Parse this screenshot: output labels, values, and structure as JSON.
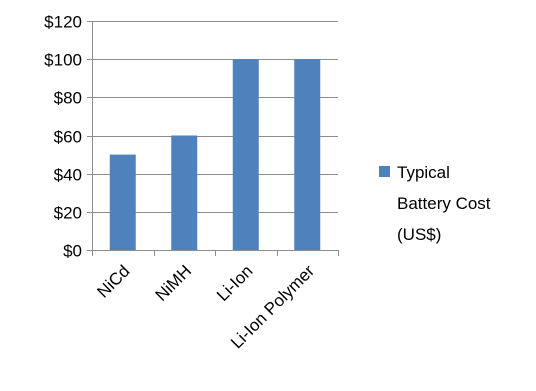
{
  "chart_data": {
    "type": "bar",
    "categories": [
      "NiCd",
      "NiMH",
      "Li-Ion",
      "Li-Ion Polymer"
    ],
    "series": [
      {
        "name": "Typical Battery Cost (US$)",
        "values": [
          50,
          60,
          100,
          100
        ],
        "color": "#4F81BD"
      }
    ],
    "ylim": [
      0,
      120
    ],
    "y_ticks": [
      0,
      20,
      40,
      60,
      80,
      100,
      120
    ],
    "y_tick_labels": [
      "$0",
      "$20",
      "$40",
      "$60",
      "$80",
      "$100",
      "$120"
    ],
    "gridlines": true,
    "legend": {
      "position": "right",
      "lines": [
        "Typical",
        "Battery Cost",
        "(US$)"
      ]
    },
    "title": "",
    "xlabel": "",
    "ylabel": ""
  }
}
